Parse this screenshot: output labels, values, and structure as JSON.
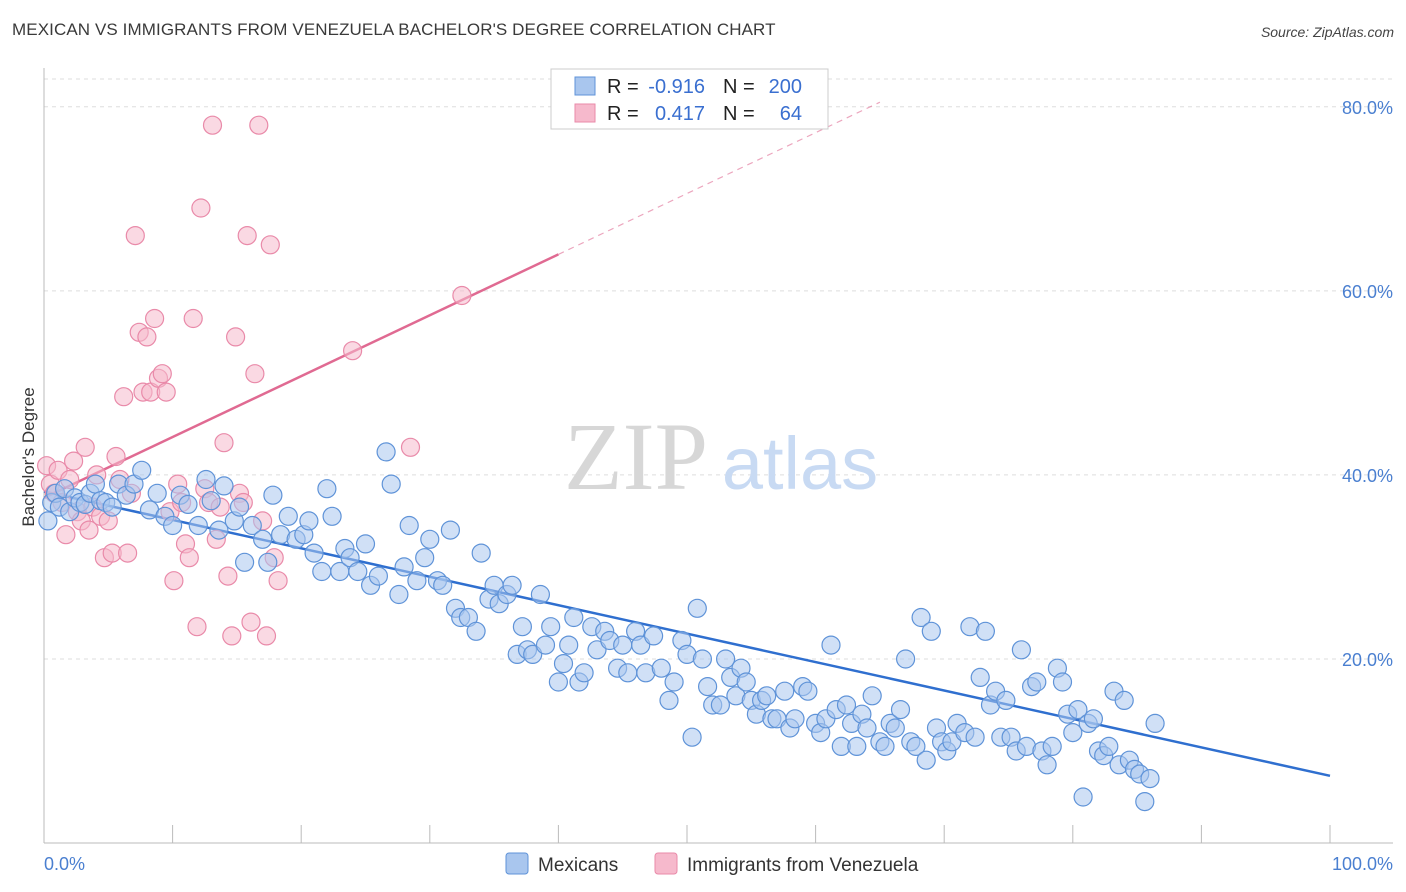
{
  "title": "MEXICAN VS IMMIGRANTS FROM VENEZUELA BACHELOR'S DEGREE CORRELATION CHART",
  "source": "Source: ZipAtlas.com",
  "watermark": {
    "zip": "ZIP",
    "atlas": "atlas"
  },
  "colors": {
    "blue_fill": "#a9c6ee",
    "blue_stroke": "#5f93d8",
    "blue_line": "#2f6fcf",
    "pink_fill": "#f6b9cc",
    "pink_stroke": "#e98aa9",
    "pink_line": "#e06a92",
    "axis_text": "#4a7fd0",
    "grid": "#dddddd"
  },
  "legend": {
    "r_label": "R =",
    "n_label": "N =",
    "rows": [
      {
        "series": "Mexicans",
        "r": "-0.916",
        "n": "200",
        "color": "blue"
      },
      {
        "series": "Immigrants from Venezuela",
        "r": "0.417",
        "n": "64",
        "color": "pink"
      }
    ]
  },
  "chart_data": {
    "type": "scatter",
    "title": "MEXICAN VS IMMIGRANTS FROM VENEZUELA BACHELOR'S DEGREE CORRELATION CHART",
    "xlabel": "",
    "ylabel": "Bachelor's Degree",
    "xlim": [
      0,
      100
    ],
    "ylim": [
      0,
      84
    ],
    "x_tick_labels": [
      "0.0%",
      "100.0%"
    ],
    "y_ticks": [
      20,
      40,
      60,
      80
    ],
    "y_tick_labels": [
      "20.0%",
      "40.0%",
      "60.0%",
      "80.0%"
    ],
    "grid": "horizontal dashed",
    "legend_position": "top-center",
    "series": [
      {
        "name": "Mexicans",
        "color": "blue",
        "trend": {
          "x0": 0,
          "y0": 38.2,
          "x1": 100,
          "y1": 7.3,
          "solid_until": 100
        },
        "points": [
          [
            0.3,
            35
          ],
          [
            0.6,
            37
          ],
          [
            0.9,
            38
          ],
          [
            1.2,
            36.5
          ],
          [
            1.6,
            38.5
          ],
          [
            2,
            36
          ],
          [
            2.4,
            37.5
          ],
          [
            2.8,
            37
          ],
          [
            3.2,
            36.8
          ],
          [
            3.6,
            38
          ],
          [
            4,
            39
          ],
          [
            4.4,
            37.2
          ],
          [
            4.8,
            37
          ],
          [
            5.3,
            36.5
          ],
          [
            5.8,
            39
          ],
          [
            6.4,
            37.8
          ],
          [
            7,
            39
          ],
          [
            7.6,
            40.5
          ],
          [
            8.2,
            36.2
          ],
          [
            8.8,
            38
          ],
          [
            9.4,
            35.5
          ],
          [
            10,
            34.5
          ],
          [
            10.6,
            37.8
          ],
          [
            11.2,
            36.8
          ],
          [
            12,
            34.5
          ],
          [
            12.6,
            39.5
          ],
          [
            13,
            37.2
          ],
          [
            13.6,
            34
          ],
          [
            14,
            38.8
          ],
          [
            14.8,
            35
          ],
          [
            15.2,
            36.5
          ],
          [
            15.6,
            30.5
          ],
          [
            16.2,
            34.5
          ],
          [
            17,
            33
          ],
          [
            17.4,
            30.5
          ],
          [
            17.8,
            37.8
          ],
          [
            18.4,
            33.5
          ],
          [
            19,
            35.5
          ],
          [
            19.6,
            33
          ],
          [
            20.2,
            33.5
          ],
          [
            20.6,
            35
          ],
          [
            21,
            31.5
          ],
          [
            21.6,
            29.5
          ],
          [
            22,
            38.5
          ],
          [
            22.4,
            35.5
          ],
          [
            23,
            29.5
          ],
          [
            23.4,
            32
          ],
          [
            23.8,
            31
          ],
          [
            24.4,
            29.5
          ],
          [
            25,
            32.5
          ],
          [
            25.4,
            28
          ],
          [
            26,
            29
          ],
          [
            26.6,
            42.5
          ],
          [
            27,
            39
          ],
          [
            27.6,
            27
          ],
          [
            28,
            30
          ],
          [
            28.4,
            34.5
          ],
          [
            29,
            28.5
          ],
          [
            29.6,
            31
          ],
          [
            30,
            33
          ],
          [
            30.6,
            28.5
          ],
          [
            31,
            28
          ],
          [
            31.6,
            34
          ],
          [
            32,
            25.5
          ],
          [
            32.4,
            24.5
          ],
          [
            33,
            24.5
          ],
          [
            33.6,
            23
          ],
          [
            34,
            31.5
          ],
          [
            34.6,
            26.5
          ],
          [
            35,
            28
          ],
          [
            35.4,
            26
          ],
          [
            36,
            27
          ],
          [
            36.4,
            28
          ],
          [
            36.8,
            20.5
          ],
          [
            37.2,
            23.5
          ],
          [
            37.6,
            21
          ],
          [
            38,
            20.5
          ],
          [
            38.6,
            27
          ],
          [
            39,
            21.5
          ],
          [
            39.4,
            23.5
          ],
          [
            40,
            17.5
          ],
          [
            40.4,
            19.5
          ],
          [
            40.8,
            21.5
          ],
          [
            41.2,
            24.5
          ],
          [
            41.6,
            17.5
          ],
          [
            42,
            18.5
          ],
          [
            42.6,
            23.5
          ],
          [
            43,
            21
          ],
          [
            43.6,
            23
          ],
          [
            44,
            22
          ],
          [
            44.6,
            19
          ],
          [
            45,
            21.5
          ],
          [
            45.4,
            18.5
          ],
          [
            46,
            23
          ],
          [
            46.4,
            21.5
          ],
          [
            46.8,
            18.5
          ],
          [
            47.4,
            22.5
          ],
          [
            48,
            19
          ],
          [
            48.6,
            15.5
          ],
          [
            49,
            17.5
          ],
          [
            49.6,
            22
          ],
          [
            50,
            20.5
          ],
          [
            50.4,
            11.5
          ],
          [
            50.8,
            25.5
          ],
          [
            51.2,
            20
          ],
          [
            51.6,
            17
          ],
          [
            52,
            15
          ],
          [
            52.6,
            15
          ],
          [
            53,
            20
          ],
          [
            53.4,
            18
          ],
          [
            53.8,
            16
          ],
          [
            54.2,
            19
          ],
          [
            54.6,
            17.5
          ],
          [
            55,
            15.5
          ],
          [
            55.4,
            14
          ],
          [
            55.8,
            15.5
          ],
          [
            56.2,
            16
          ],
          [
            56.6,
            13.5
          ],
          [
            57,
            13.5
          ],
          [
            57.6,
            16.5
          ],
          [
            58,
            12.5
          ],
          [
            58.4,
            13.5
          ],
          [
            59,
            17
          ],
          [
            59.4,
            16.5
          ],
          [
            60,
            13
          ],
          [
            60.4,
            12
          ],
          [
            60.8,
            13.5
          ],
          [
            61.2,
            21.5
          ],
          [
            61.6,
            14.5
          ],
          [
            62,
            10.5
          ],
          [
            62.4,
            15
          ],
          [
            62.8,
            13
          ],
          [
            63.2,
            10.5
          ],
          [
            63.6,
            14
          ],
          [
            64,
            12.5
          ],
          [
            64.4,
            16
          ],
          [
            65,
            11
          ],
          [
            65.4,
            10.5
          ],
          [
            65.8,
            13
          ],
          [
            66.2,
            12.5
          ],
          [
            66.6,
            14.5
          ],
          [
            67,
            20
          ],
          [
            67.4,
            11
          ],
          [
            67.8,
            10.5
          ],
          [
            68.2,
            24.5
          ],
          [
            68.6,
            9
          ],
          [
            69,
            23
          ],
          [
            69.4,
            12.5
          ],
          [
            69.8,
            11
          ],
          [
            70.2,
            10
          ],
          [
            70.6,
            11
          ],
          [
            71,
            13
          ],
          [
            71.6,
            12
          ],
          [
            72,
            23.5
          ],
          [
            72.4,
            11.5
          ],
          [
            72.8,
            18
          ],
          [
            73.2,
            23
          ],
          [
            73.6,
            15
          ],
          [
            74,
            16.5
          ],
          [
            74.4,
            11.5
          ],
          [
            74.8,
            15.5
          ],
          [
            75.2,
            11.5
          ],
          [
            75.6,
            10
          ],
          [
            76,
            21
          ],
          [
            76.4,
            10.5
          ],
          [
            76.8,
            17
          ],
          [
            77.2,
            17.5
          ],
          [
            77.6,
            10
          ],
          [
            78,
            8.5
          ],
          [
            78.4,
            10.5
          ],
          [
            78.8,
            19
          ],
          [
            79.2,
            17.5
          ],
          [
            79.6,
            14
          ],
          [
            80,
            12
          ],
          [
            80.4,
            14.5
          ],
          [
            80.8,
            5
          ],
          [
            81.2,
            13
          ],
          [
            81.6,
            13.5
          ],
          [
            82,
            10
          ],
          [
            82.4,
            9.5
          ],
          [
            82.8,
            10.5
          ],
          [
            83.2,
            16.5
          ],
          [
            83.6,
            8.5
          ],
          [
            84,
            15.5
          ],
          [
            84.4,
            9
          ],
          [
            84.8,
            8
          ],
          [
            85.2,
            7.5
          ],
          [
            85.6,
            4.5
          ],
          [
            86,
            7
          ],
          [
            86.4,
            13
          ]
        ]
      },
      {
        "name": "Immigrants from Venezuela",
        "color": "pink",
        "trend": {
          "x0": 0,
          "y0": 37.5,
          "x1": 65,
          "y1": 80.5,
          "solid_until": 40
        },
        "points": [
          [
            0.2,
            41
          ],
          [
            0.5,
            39
          ],
          [
            0.8,
            38
          ],
          [
            1.1,
            40.5
          ],
          [
            1.4,
            37
          ],
          [
            1.7,
            33.5
          ],
          [
            2,
            39.5
          ],
          [
            2.3,
            41.5
          ],
          [
            2.6,
            36
          ],
          [
            2.9,
            35
          ],
          [
            3.2,
            43
          ],
          [
            3.5,
            34
          ],
          [
            3.8,
            36.5
          ],
          [
            4.1,
            40
          ],
          [
            4.4,
            35.5
          ],
          [
            4.7,
            31
          ],
          [
            5,
            35
          ],
          [
            5.3,
            31.5
          ],
          [
            5.6,
            42
          ],
          [
            5.9,
            39.5
          ],
          [
            6.2,
            48.5
          ],
          [
            6.5,
            31.5
          ],
          [
            6.8,
            38
          ],
          [
            7.1,
            66
          ],
          [
            7.4,
            55.5
          ],
          [
            7.7,
            49
          ],
          [
            8,
            55
          ],
          [
            8.3,
            49
          ],
          [
            8.6,
            57
          ],
          [
            8.9,
            50.5
          ],
          [
            9.2,
            51
          ],
          [
            9.5,
            49
          ],
          [
            9.8,
            36
          ],
          [
            10.1,
            28.5
          ],
          [
            10.4,
            39
          ],
          [
            10.7,
            37
          ],
          [
            11,
            32.5
          ],
          [
            11.3,
            31
          ],
          [
            11.6,
            57
          ],
          [
            11.9,
            23.5
          ],
          [
            12.2,
            69
          ],
          [
            12.5,
            38.5
          ],
          [
            12.8,
            37
          ],
          [
            13.1,
            78
          ],
          [
            13.4,
            33
          ],
          [
            13.7,
            36.5
          ],
          [
            14,
            43.5
          ],
          [
            14.3,
            29
          ],
          [
            14.6,
            22.5
          ],
          [
            14.9,
            55
          ],
          [
            15.2,
            38
          ],
          [
            15.5,
            37
          ],
          [
            15.8,
            66
          ],
          [
            16.1,
            24
          ],
          [
            16.4,
            51
          ],
          [
            16.7,
            78
          ],
          [
            17,
            35
          ],
          [
            17.3,
            22.5
          ],
          [
            17.6,
            65
          ],
          [
            17.9,
            31
          ],
          [
            18.2,
            28.5
          ],
          [
            24,
            53.5
          ],
          [
            28.5,
            43
          ],
          [
            32.5,
            59.5
          ]
        ]
      }
    ]
  }
}
